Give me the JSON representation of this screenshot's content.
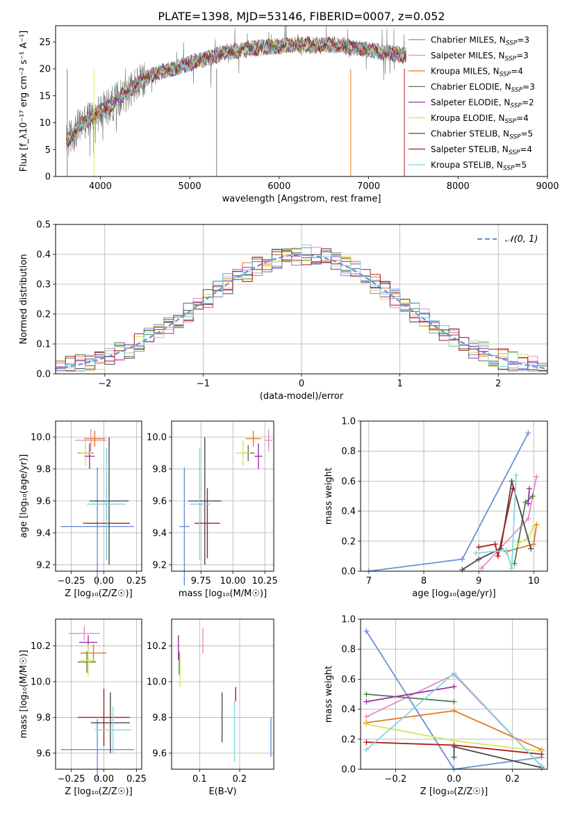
{
  "title": "PLATE=1398, MJD=53146, FIBERID=0007, z=0.052",
  "palette": {
    "blue": "#6a8fd6",
    "pink": "#e58ac8",
    "orange": "#e07b22",
    "darkgreen": "#4e7a4e",
    "purple": "#9a2ea8",
    "yellow": "#d4e65a",
    "darkgray": "#4a4a4a",
    "red": "#b01818",
    "cyan": "#7fd8e0",
    "gray": "#808080"
  },
  "chart_data": [
    {
      "type": "line",
      "title": "PLATE=1398, MJD=53146, FIBERID=0007, z=0.052",
      "xlabel": "wavelength [Angstrom, rest frame]",
      "ylabel": "Flux [f_λ10⁻¹⁷ erg cm⁻² s⁻¹ A⁻¹]",
      "xlim": [
        3500,
        9000
      ],
      "ylim": [
        0,
        28
      ],
      "xticks": [
        4000,
        5000,
        6000,
        7000,
        8000,
        9000
      ],
      "yticks": [
        0,
        5,
        10,
        15,
        20,
        25
      ],
      "grid": false,
      "legend_position": "top-right",
      "legend": [
        {
          "label": "Chabrier MILES, N",
          "sub": "SSP",
          "suffix": "=3",
          "color": "#6a8fd6"
        },
        {
          "label": "Salpeter MILES, N",
          "sub": "SSP",
          "suffix": "=3",
          "color": "#e58ac8"
        },
        {
          "label": "Kroupa MILES, N",
          "sub": "SSP",
          "suffix": "=4",
          "color": "#e07b22"
        },
        {
          "label": "Chabrier ELODIE, N",
          "sub": "SSP",
          "suffix": "=3",
          "color": "#4e7a4e"
        },
        {
          "label": "Salpeter ELODIE, N",
          "sub": "SSP",
          "suffix": "=2",
          "color": "#9a2ea8"
        },
        {
          "label": "Kroupa ELODIE, N",
          "sub": "SSP",
          "suffix": "=4",
          "color": "#d4e65a"
        },
        {
          "label": "Chabrier STELIB, N",
          "sub": "SSP",
          "suffix": "=5",
          "color": "#4a4a4a"
        },
        {
          "label": "Salpeter STELIB, N",
          "sub": "SSP",
          "suffix": "=4",
          "color": "#b01818"
        },
        {
          "label": "Kroupa STELIB, N",
          "sub": "SSP",
          "suffix": "=5",
          "color": "#7fd8e0"
        }
      ],
      "continuum_x": [
        3620,
        3700,
        3800,
        3900,
        4000,
        4100,
        4200,
        4300,
        4400,
        4500,
        4600,
        4800,
        5000,
        5200,
        5400,
        5600,
        5800,
        6000,
        6200,
        6400,
        6600,
        6800,
        7000,
        7200,
        7400
      ],
      "continuum_y": [
        6.5,
        8,
        10,
        11,
        12,
        13,
        14.5,
        15.5,
        17,
        18,
        19,
        20,
        21,
        22,
        23,
        23.5,
        24,
        24.2,
        24.5,
        24.3,
        24.5,
        24,
        23.5,
        23,
        22.5
      ]
    },
    {
      "type": "bar",
      "title": "",
      "xlabel": "(data-model)/error",
      "ylabel": "Normed distribution",
      "xlim": [
        -2.5,
        2.5
      ],
      "ylim": [
        0,
        0.5
      ],
      "xticks": [
        -2,
        -1,
        0,
        1,
        2
      ],
      "yticks": [
        0.0,
        0.1,
        0.2,
        0.3,
        0.4,
        0.5
      ],
      "grid": true,
      "legend_position": "top-right",
      "legend": [
        {
          "label": "𝒩(0, 1)",
          "color": "#6a8fd6",
          "style": "dashed"
        }
      ],
      "bin_width": 0.1,
      "note_series": "Nine step histograms, one per model (colors as top panel), approximately following N(0,1)."
    },
    {
      "type": "scatter",
      "title": "",
      "xlabel": "Z [log₁₀(Z/Z☉)]",
      "ylabel": "age  [log₁₀(age/yr)]",
      "xlim": [
        -0.37,
        0.29
      ],
      "ylim": [
        9.16,
        10.1
      ],
      "xticks": [
        -0.25,
        0.0,
        0.25
      ],
      "xticklabels": [
        "−0.25",
        "0.00",
        "0.25"
      ],
      "yticks": [
        9.2,
        9.4,
        9.6,
        9.8,
        10.0
      ],
      "grid": true,
      "series": [
        {
          "color": "#6a8fd6",
          "x": -0.05,
          "xerr": 0.28,
          "y": 9.44,
          "yerr": 0.37
        },
        {
          "color": "#e58ac8",
          "x": -0.1,
          "xerr": 0.12,
          "y": 9.98,
          "yerr": 0.07
        },
        {
          "color": "#e07b22",
          "x": -0.07,
          "xerr": 0.08,
          "y": 9.99,
          "yerr": 0.05
        },
        {
          "color": "#4e7a4e",
          "x": -0.14,
          "xerr": 0.06,
          "y": 9.9,
          "yerr": 0.05
        },
        {
          "color": "#9a2ea8",
          "x": -0.11,
          "xerr": 0.04,
          "y": 9.88,
          "yerr": 0.08
        },
        {
          "color": "#d4e65a",
          "x": -0.14,
          "xerr": 0.05,
          "y": 9.9,
          "yerr": 0.08
        },
        {
          "color": "#4a4a4a",
          "x": 0.04,
          "xerr": 0.15,
          "y": 9.6,
          "yerr": 0.4
        },
        {
          "color": "#b01818",
          "x": 0.02,
          "xerr": 0.18,
          "y": 9.46,
          "yerr": 0.22
        },
        {
          "color": "#7fd8e0",
          "x": 0.02,
          "xerr": 0.15,
          "y": 9.58,
          "yerr": 0.35
        }
      ]
    },
    {
      "type": "scatter",
      "title": "",
      "xlabel": "mass [log₁₀(M/M☉)]",
      "ylabel": "",
      "xlim": [
        9.52,
        10.32
      ],
      "ylim": [
        9.16,
        10.1
      ],
      "xticks": [
        9.75,
        10.0,
        10.25
      ],
      "xticklabels": [
        "9.75",
        "10.00",
        "10.25"
      ],
      "yticks": [
        9.2,
        9.4,
        9.6,
        9.8,
        10.0
      ],
      "grid": true,
      "series": [
        {
          "color": "#6a8fd6",
          "x": 9.62,
          "xerr": 0.04,
          "y": 9.44,
          "yerr": 0.37
        },
        {
          "color": "#e58ac8",
          "x": 10.28,
          "xerr": 0.03,
          "y": 9.98,
          "yerr": 0.07
        },
        {
          "color": "#e07b22",
          "x": 10.16,
          "xerr": 0.06,
          "y": 9.99,
          "yerr": 0.05
        },
        {
          "color": "#4e7a4e",
          "x": 10.12,
          "xerr": 0.05,
          "y": 9.9,
          "yerr": 0.05
        },
        {
          "color": "#9a2ea8",
          "x": 10.2,
          "xerr": 0.03,
          "y": 9.88,
          "yerr": 0.08
        },
        {
          "color": "#d4e65a",
          "x": 10.08,
          "xerr": 0.06,
          "y": 9.9,
          "yerr": 0.08
        },
        {
          "color": "#4a4a4a",
          "x": 9.78,
          "xerr": 0.13,
          "y": 9.6,
          "yerr": 0.4
        },
        {
          "color": "#b01818",
          "x": 9.8,
          "xerr": 0.1,
          "y": 9.46,
          "yerr": 0.22
        },
        {
          "color": "#7fd8e0",
          "x": 9.74,
          "xerr": 0.08,
          "y": 9.58,
          "yerr": 0.35
        }
      ]
    },
    {
      "type": "line",
      "title": "",
      "xlabel": "age  [log₁₀(age/yr)]",
      "ylabel": "mass weight",
      "xlim": [
        6.85,
        10.25
      ],
      "ylim": [
        0,
        1.0
      ],
      "xticks": [
        7,
        8,
        9,
        10
      ],
      "yticks": [
        0.0,
        0.2,
        0.4,
        0.6,
        0.8,
        1.0
      ],
      "grid": true,
      "series": [
        {
          "color": "#6a8fd6",
          "x": [
            7.0,
            8.7,
            9.9
          ],
          "y": [
            0.0,
            0.08,
            0.92
          ]
        },
        {
          "color": "#e58ac8",
          "x": [
            9.05,
            9.9,
            10.05
          ],
          "y": [
            0.02,
            0.35,
            0.63
          ]
        },
        {
          "color": "#e07b22",
          "x": [
            9.5,
            10.0,
            10.05
          ],
          "y": [
            0.13,
            0.18,
            0.31
          ]
        },
        {
          "color": "#4e7a4e",
          "x": [
            9.65,
            9.85,
            9.98
          ],
          "y": [
            0.05,
            0.46,
            0.5
          ]
        },
        {
          "color": "#9a2ea8",
          "x": [
            9.9,
            9.92
          ],
          "y": [
            0.45,
            0.55
          ]
        },
        {
          "color": "#d4e65a",
          "x": [
            9.7,
            9.9,
            10.0
          ],
          "y": [
            0.18,
            0.22,
            0.3
          ]
        },
        {
          "color": "#4a4a4a",
          "x": [
            8.7,
            9.0,
            9.4,
            9.6,
            9.95
          ],
          "y": [
            0.01,
            0.08,
            0.15,
            0.6,
            0.15
          ]
        },
        {
          "color": "#b01818",
          "x": [
            9.0,
            9.3,
            9.35,
            9.62
          ],
          "y": [
            0.16,
            0.18,
            0.1,
            0.55
          ]
        },
        {
          "color": "#7fd8e0",
          "x": [
            8.95,
            9.5,
            9.6,
            9.68
          ],
          "y": [
            0.12,
            0.14,
            0.02,
            0.64
          ]
        }
      ]
    },
    {
      "type": "scatter",
      "title": "",
      "xlabel": "Z [log₁₀(Z/Z☉)]",
      "ylabel": "mass [log₁₀(M/M☉)]",
      "xlim": [
        -0.37,
        0.29
      ],
      "ylim": [
        9.51,
        10.35
      ],
      "xticks": [
        -0.25,
        0.0,
        0.25
      ],
      "xticklabels": [
        "−0.25",
        "0.00",
        "0.25"
      ],
      "yticks": [
        9.6,
        9.8,
        10.0,
        10.2
      ],
      "grid": true,
      "series": [
        {
          "color": "#6a8fd6",
          "x": -0.05,
          "xerr": 0.28,
          "y": 9.62,
          "yerr": 0.17
        },
        {
          "color": "#e58ac8",
          "x": -0.15,
          "xerr": 0.12,
          "y": 10.27,
          "yerr": 0.04
        },
        {
          "color": "#e07b22",
          "x": -0.08,
          "xerr": 0.1,
          "y": 10.16,
          "yerr": 0.05
        },
        {
          "color": "#4e7a4e",
          "x": -0.13,
          "xerr": 0.07,
          "y": 10.11,
          "yerr": 0.06
        },
        {
          "color": "#9a2ea8",
          "x": -0.12,
          "xerr": 0.07,
          "y": 10.22,
          "yerr": 0.04
        },
        {
          "color": "#d4e65a",
          "x": -0.12,
          "xerr": 0.06,
          "y": 10.12,
          "yerr": 0.09
        },
        {
          "color": "#4a4a4a",
          "x": 0.05,
          "xerr": 0.15,
          "y": 9.77,
          "yerr": 0.17
        },
        {
          "color": "#b01818",
          "x": 0.0,
          "xerr": 0.2,
          "y": 9.8,
          "yerr": 0.16
        },
        {
          "color": "#7fd8e0",
          "x": 0.07,
          "xerr": 0.14,
          "y": 9.73,
          "yerr": 0.13
        }
      ]
    },
    {
      "type": "scatter",
      "title": "",
      "xlabel": "E(B-V)",
      "ylabel": "",
      "xlim": [
        0.03,
        0.285
      ],
      "ylim": [
        9.51,
        10.35
      ],
      "xticks": [
        0.1,
        0.2
      ],
      "xticklabels": [
        "0.1",
        "0.2"
      ],
      "yticks": [
        9.6,
        9.8,
        10.0,
        10.2
      ],
      "grid": true,
      "series": [
        {
          "color": "#6a8fd6",
          "x": 0.278,
          "xerr": 0,
          "y": 9.69,
          "yerr": 0.11
        },
        {
          "color": "#e58ac8",
          "x": 0.108,
          "xerr": 0,
          "y": 10.23,
          "yerr": 0.07
        },
        {
          "color": "#e07b22",
          "x": 0.049,
          "xerr": 0,
          "y": 10.14,
          "yerr": 0.03
        },
        {
          "color": "#4e7a4e",
          "x": 0.049,
          "xerr": 0,
          "y": 10.1,
          "yerr": 0.06
        },
        {
          "color": "#9a2ea8",
          "x": 0.047,
          "xerr": 0,
          "y": 10.19,
          "yerr": 0.07
        },
        {
          "color": "#d4e65a",
          "x": 0.051,
          "xerr": 0,
          "y": 10.06,
          "yerr": 0.09
        },
        {
          "color": "#4a4a4a",
          "x": 0.156,
          "xerr": 0,
          "y": 9.8,
          "yerr": 0.14
        },
        {
          "color": "#b01818",
          "x": 0.19,
          "xerr": 0,
          "y": 9.93,
          "yerr": 0.04
        },
        {
          "color": "#7fd8e0",
          "x": 0.187,
          "xerr": 0,
          "y": 9.72,
          "yerr": 0.17
        }
      ]
    },
    {
      "type": "line",
      "title": "",
      "xlabel": "Z [log₁₀(Z/Z☉)]",
      "ylabel": "mass weight",
      "xlim": [
        -0.32,
        0.32
      ],
      "ylim": [
        0,
        1.0
      ],
      "xticks": [
        -0.2,
        0.0,
        0.2
      ],
      "xticklabels": [
        "−0.2",
        "0.0",
        "0.2"
      ],
      "yticks": [
        0.0,
        0.2,
        0.4,
        0.6,
        0.8,
        1.0
      ],
      "grid": true,
      "series": [
        {
          "color": "#6a8fd6",
          "x": [
            -0.3,
            0.0,
            0.3
          ],
          "y": [
            0.92,
            0.0,
            0.08
          ]
        },
        {
          "color": "#e58ac8",
          "x": [
            -0.3,
            0.0,
            0.3
          ],
          "y": [
            0.35,
            0.63,
            0.02
          ]
        },
        {
          "color": "#e07b22",
          "x": [
            -0.3,
            0.0,
            0.3
          ],
          "y": [
            0.31,
            0.39,
            0.13
          ]
        },
        {
          "color": "#4e7a4e",
          "x": [
            -0.3,
            0.0
          ],
          "y": [
            0.5,
            0.45
          ]
        },
        {
          "color": "#9a2ea8",
          "x": [
            -0.3,
            0.0
          ],
          "y": [
            0.45,
            0.55
          ]
        },
        {
          "color": "#d4e65a",
          "x": [
            -0.3,
            0.0,
            0.3
          ],
          "y": [
            0.3,
            0.19,
            0.12
          ]
        },
        {
          "color": "#4a4a4a",
          "x": [
            0.0,
            0.0,
            0.3
          ],
          "y": [
            0.08,
            0.15,
            0.01
          ]
        },
        {
          "color": "#b01818",
          "x": [
            -0.3,
            0.0,
            0.3
          ],
          "y": [
            0.18,
            0.16,
            0.1
          ]
        },
        {
          "color": "#7fd8e0",
          "x": [
            -0.3,
            0.0,
            0.3
          ],
          "y": [
            0.13,
            0.64,
            0.02
          ]
        }
      ]
    }
  ]
}
